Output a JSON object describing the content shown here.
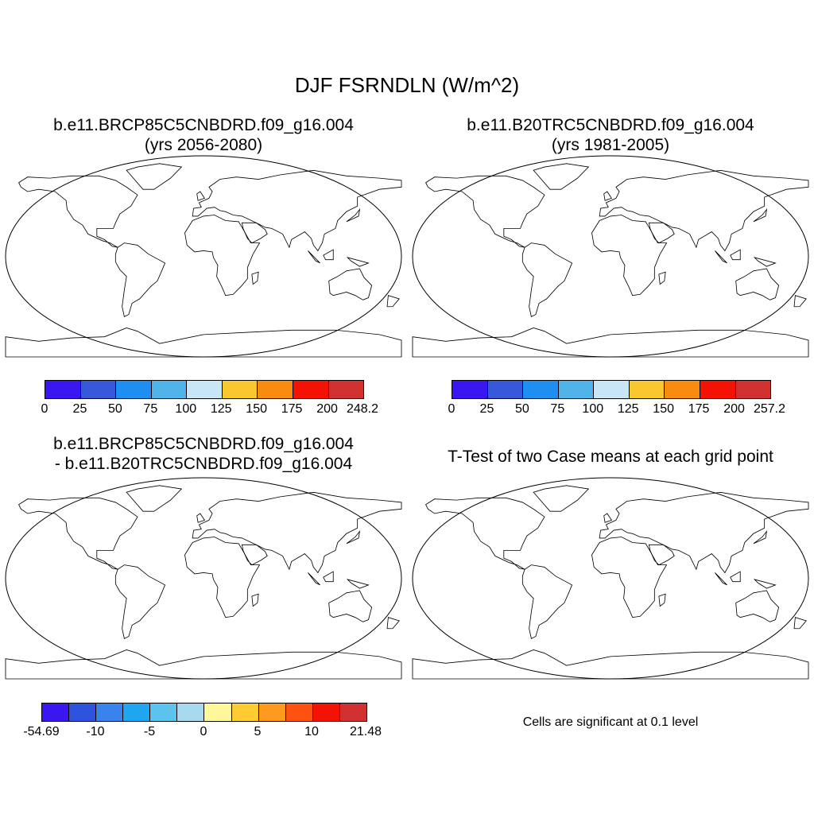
{
  "title": "DJF FSRNDLN (W/m^2)",
  "panels": [
    {
      "title_line1": "b.e11.BRCP85C5CNBDRD.f09_g16.004",
      "title_line2": "(yrs 2056-2080)",
      "colorbar": {
        "colors": [
          "#3a17f0",
          "#3858dc",
          "#1e8ef0",
          "#50b4ea",
          "#c8e6f6",
          "#f8c82e",
          "#f88b10",
          "#f41204",
          "#d03030"
        ],
        "labels": [
          "0",
          "25",
          "50",
          "75",
          "100",
          "125",
          "150",
          "175",
          "200",
          "248.2"
        ]
      }
    },
    {
      "title_line1": "b.e11.B20TRC5CNBDRD.f09_g16.004",
      "title_line2": "(yrs 1981-2005)",
      "colorbar": {
        "colors": [
          "#3a17f0",
          "#3858dc",
          "#1e8ef0",
          "#50b4ea",
          "#c8e6f6",
          "#f8c82e",
          "#f88b10",
          "#f41204",
          "#d03030"
        ],
        "labels": [
          "0",
          "25",
          "50",
          "75",
          "100",
          "125",
          "150",
          "175",
          "200",
          "257.2"
        ]
      }
    },
    {
      "title_line1": "b.e11.BRCP85C5CNBDRD.f09_g16.004",
      "title_line2": "- b.e11.B20TRC5CNBDRD.f09_g16.004",
      "colorbar": {
        "colors": [
          "#3a17f0",
          "#2d52de",
          "#3a82ec",
          "#1ea6f0",
          "#5cc2ee",
          "#a6d8ee",
          "#fef89a",
          "#fecc32",
          "#fe9a1e",
          "#fe5212",
          "#f41204",
          "#d03030"
        ],
        "labels": [
          "-54.69",
          "-10",
          "-5",
          "0",
          "5",
          "10",
          "21.48"
        ]
      }
    },
    {
      "title_line1": "T-Test of two Case means at each grid point",
      "note": "Cells are significant at 0.1 level",
      "color": "#ee0000"
    }
  ]
}
